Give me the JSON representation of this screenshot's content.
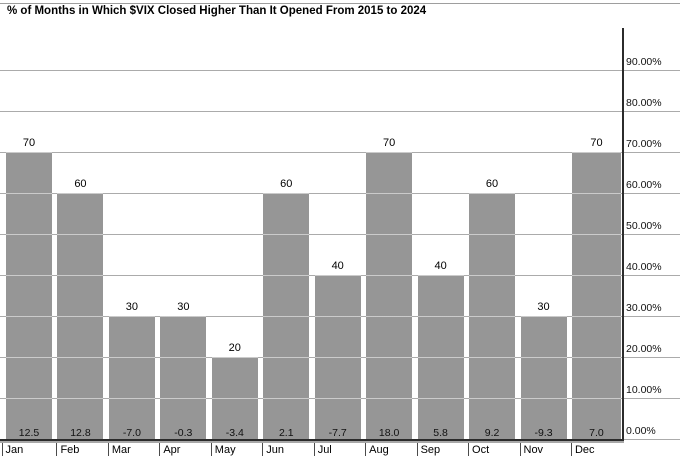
{
  "title": "% of Months in Which $VIX Closed Higher Than It Opened From 2015 to 2024",
  "colors": {
    "bar": "#969696",
    "gridline": "#ababab",
    "axis": "#2b2b2b",
    "axis_shadow": "#a8a8a8",
    "background": "#ffffff",
    "text": "#000000"
  },
  "y_axis": {
    "labels": [
      "0.00%",
      "10.00%",
      "20.00%",
      "30.00%",
      "40.00%",
      "50.00%",
      "60.00%",
      "70.00%",
      "80.00%",
      "90.00%"
    ]
  },
  "chart_data": {
    "type": "bar",
    "title": "% of Months in Which $VIX Closed Higher Than It Opened From 2015 to 2024",
    "categories": [
      "Jan",
      "Feb",
      "Mar",
      "Apr",
      "May",
      "Jun",
      "Jul",
      "Aug",
      "Sep",
      "Oct",
      "Nov",
      "Dec"
    ],
    "series": [
      {
        "name": "percent-of-months-closed-higher",
        "unit": "%",
        "values": [
          70,
          60,
          30,
          30,
          20,
          60,
          40,
          70,
          40,
          60,
          30,
          70
        ]
      },
      {
        "name": "average-percent-change",
        "unit": "%",
        "values": [
          12.5,
          12.8,
          -7.0,
          -0.3,
          -3.4,
          2.1,
          -7.7,
          18.0,
          5.8,
          9.2,
          -9.3,
          7.0
        ]
      }
    ],
    "bar_top_labels": [
      "70",
      "60",
      "30",
      "30",
      "20",
      "60",
      "40",
      "70",
      "40",
      "60",
      "30",
      "70"
    ],
    "bar_bottom_labels": [
      "12.5",
      "12.8",
      "-7.0",
      "-0.3",
      "-3.4",
      "2.1",
      "-7.7",
      "18.0",
      "5.8",
      "9.2",
      "-9.3",
      "7.0"
    ],
    "y_tick_labels": [
      "0.00%",
      "10.00%",
      "20.00%",
      "30.00%",
      "40.00%",
      "50.00%",
      "60.00%",
      "70.00%",
      "80.00%",
      "90.00%"
    ],
    "ylim": [
      0,
      100
    ],
    "y_step": 10,
    "grid": true,
    "legend_position": "none",
    "value_label_position": "above-bar-top-and-inside-bar-bottom",
    "axis_side": "right"
  }
}
